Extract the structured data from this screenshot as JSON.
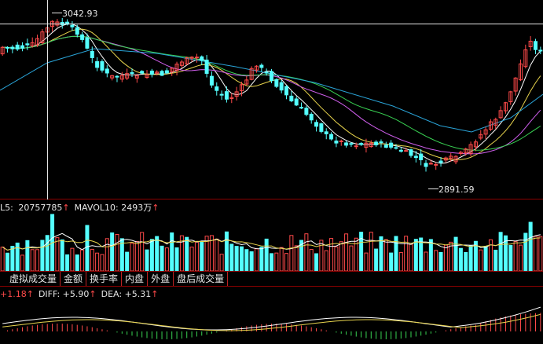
{
  "price_panel": {
    "high_label": "3042.93",
    "low_label": "2891.59",
    "colors": {
      "up": "#ff4a4a",
      "down": "#54ffff",
      "ma5": "#ffffff",
      "ma10": "#e8d44d",
      "ma20": "#d15fee",
      "ma30": "#39d353",
      "ma60": "#2aa4d8",
      "grid": "#8b0000"
    }
  },
  "volume_panel": {
    "prefix": "L5: ",
    "mavol5_value": "20757785",
    "mavol5_arrow": "↑",
    "mavol10_label": "MAVOL10: ",
    "mavol10_value": "2493万",
    "mavol10_arrow": "↑"
  },
  "indicator_tabs": [
    {
      "label": "虚拟成交量"
    },
    {
      "label": "金额"
    },
    {
      "label": "换手率"
    },
    {
      "label": "内盘"
    },
    {
      "label": "外盘"
    },
    {
      "label": "盘后成交量"
    }
  ],
  "macd_panel": {
    "macd_value": "+1.18",
    "macd_arrow": "↑",
    "diff_label": "DIFF: ",
    "diff_value": "+5.90",
    "diff_arrow": "↑",
    "dea_label": "DEA: ",
    "dea_value": "+5.31",
    "dea_arrow": "↑"
  }
}
